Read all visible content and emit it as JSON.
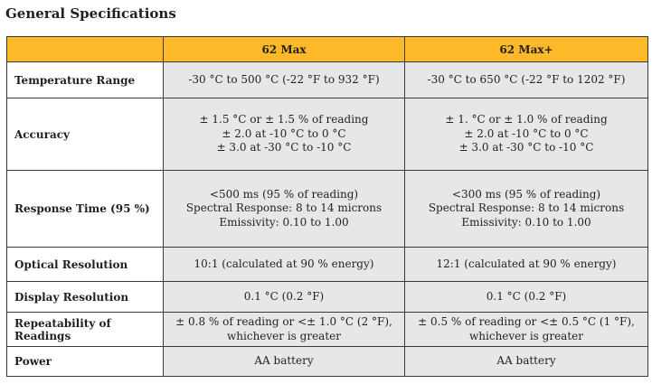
{
  "title": "General Specifications",
  "table": {
    "columns": [
      "62 Max",
      "62 Max+"
    ],
    "rows": [
      {
        "label": "Temperature Range",
        "cells": [
          [
            "-30 °C to 500 °C (-22 °F to 932 °F)"
          ],
          [
            "-30 °C to 650 °C (-22 °F to 1202 °F)"
          ]
        ]
      },
      {
        "label": "Accuracy",
        "cells": [
          [
            "± 1.5 °C or ± 1.5 % of reading",
            "± 2.0 at -10 °C to 0 °C",
            "± 3.0 at -30 °C to -10 °C"
          ],
          [
            "± 1. °C or ± 1.0 % of reading",
            "± 2.0 at -10 °C to 0 °C",
            "± 3.0 at -30 °C to -10 °C"
          ]
        ]
      },
      {
        "label": "Response Time (95 %)",
        "cells": [
          [
            "<500 ms (95 % of reading)",
            "Spectral Response: 8 to 14 microns",
            "Emissivity: 0.10 to 1.00"
          ],
          [
            "<300 ms (95 % of reading)",
            "Spectral Response: 8 to 14 microns",
            "Emissivity: 0.10 to 1.00"
          ]
        ]
      },
      {
        "label": "Optical Resolution",
        "cells": [
          [
            "10:1 (calculated at 90 % energy)"
          ],
          [
            "12:1 (calculated at 90 % energy)"
          ]
        ]
      },
      {
        "label": "Display Resolution",
        "cells": [
          [
            "0.1 °C (0.2 °F)"
          ],
          [
            "0.1 °C (0.2 °F)"
          ]
        ]
      },
      {
        "label": "Repeatability of Readings",
        "cells": [
          [
            "± 0.8 % of reading or <± 1.0 °C (2 °F),",
            "whichever is greater"
          ],
          [
            "± 0.5 % of reading or <± 0.5 °C (1 °F),",
            "whichever is greater"
          ]
        ]
      },
      {
        "label": "Power",
        "cells": [
          [
            "AA battery"
          ],
          [
            "AA battery"
          ]
        ]
      }
    ]
  }
}
